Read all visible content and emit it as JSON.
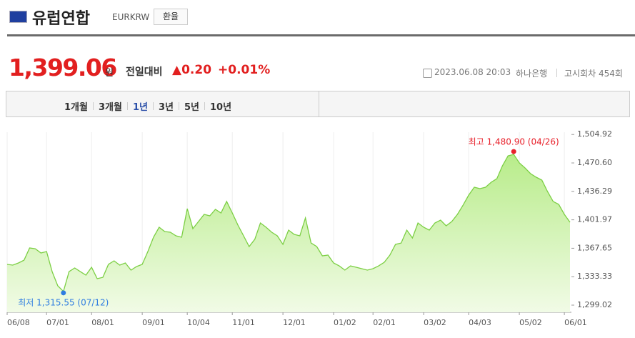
{
  "header": {
    "title": "유럽연합",
    "code": "EURKRW",
    "button": "환율"
  },
  "quote": {
    "price": "1,399.06",
    "unit": "원",
    "change_label": "전일대비",
    "change": "▲0.20",
    "change_pct": "+0.01%",
    "datetime": "2023.06.08 20:03",
    "bank": "하나은행",
    "round": "고시회차 454회"
  },
  "tabs": {
    "items": [
      "1개월",
      "3개월",
      "1년",
      "3년",
      "5년",
      "10년"
    ],
    "active": "1년"
  },
  "chart_data": {
    "type": "area",
    "color": "#7ccf44",
    "categories": [
      "06/08",
      null,
      null,
      null,
      null,
      null,
      null,
      "07/01",
      null,
      null,
      null,
      null,
      null,
      null,
      null,
      "08/01",
      null,
      null,
      null,
      null,
      null,
      null,
      null,
      null,
      "09/01",
      null,
      null,
      null,
      null,
      null,
      null,
      null,
      "10/04",
      null,
      null,
      null,
      null,
      null,
      null,
      null,
      "11/01",
      null,
      null,
      null,
      null,
      null,
      null,
      null,
      null,
      "12/01",
      null,
      null,
      null,
      null,
      null,
      null,
      null,
      null,
      "01/02",
      null,
      null,
      null,
      null,
      null,
      null,
      "02/01",
      null,
      null,
      null,
      null,
      null,
      null,
      null,
      null,
      "03/02",
      null,
      null,
      null,
      null,
      null,
      null,
      null,
      "04/03",
      null,
      null,
      null,
      null,
      null,
      null,
      null,
      null,
      "05/02",
      null,
      null,
      null,
      null,
      null,
      null,
      null,
      "06/01",
      null
    ],
    "values": [
      1348.2,
      1347.3,
      1349.9,
      1353.3,
      1368.0,
      1367.1,
      1362.0,
      1363.7,
      1339.5,
      1322.3,
      1315.55,
      1339.5,
      1343.9,
      1339.5,
      1335.2,
      1344.7,
      1330.9,
      1332.6,
      1348.2,
      1352.5,
      1347.3,
      1349.9,
      1341.3,
      1345.6,
      1348.2,
      1363.7,
      1380.9,
      1393.0,
      1387.8,
      1387.0,
      1382.7,
      1380.9,
      1415.4,
      1391.3,
      1399.9,
      1408.5,
      1406.8,
      1414.6,
      1410.3,
      1424.1,
      1410.3,
      1395.6,
      1382.7,
      1369.7,
      1378.4,
      1398.2,
      1393.0,
      1387.0,
      1382.7,
      1372.3,
      1389.6,
      1384.4,
      1382.7,
      1404.2,
      1374.0,
      1369.7,
      1358.5,
      1359.4,
      1349.9,
      1346.4,
      1341.3,
      1346.4,
      1344.7,
      1343.0,
      1341.3,
      1343.0,
      1346.4,
      1350.8,
      1359.4,
      1372.3,
      1374.0,
      1389.6,
      1380.1,
      1398.2,
      1393.0,
      1389.6,
      1398.2,
      1401.6,
      1394.7,
      1399.9,
      1408.5,
      1419.7,
      1431.8,
      1441.3,
      1439.6,
      1441.3,
      1447.3,
      1451.6,
      1467.2,
      1479.2,
      1480.9,
      1470.6,
      1464.6,
      1457.7,
      1453.4,
      1449.9,
      1436.1,
      1424.1,
      1420.6,
      1408.5,
      1399.06
    ],
    "ylim": [
      1290.4,
      1507.7
    ],
    "yticks": [
      {
        "value": 1299.02,
        "label": "1,299.02"
      },
      {
        "value": 1333.33,
        "label": "1,333.33"
      },
      {
        "value": 1367.65,
        "label": "1,367.65"
      },
      {
        "value": 1401.97,
        "label": "1,401.97"
      },
      {
        "value": 1436.29,
        "label": "1,436.29"
      },
      {
        "value": 1470.6,
        "label": "1,470.60"
      },
      {
        "value": 1504.92,
        "label": "1,504.92"
      }
    ],
    "max_label": "최고 1,480.90 (04/26)",
    "min_label": "최저 1,315.55 (07/12)",
    "grid": "x"
  }
}
